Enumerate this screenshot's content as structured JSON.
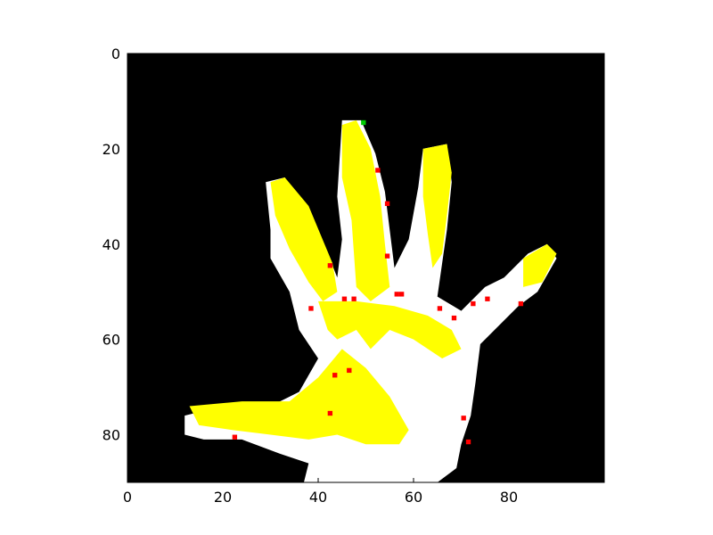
{
  "chart_data": {
    "type": "heatmap",
    "title": "",
    "xlabel": "",
    "ylabel": "",
    "xlim": [
      0,
      100
    ],
    "ylim": [
      90,
      0
    ],
    "xticks": [
      "0",
      "20",
      "40",
      "60",
      "80"
    ],
    "yticks": [
      "0",
      "20",
      "40",
      "60",
      "80"
    ],
    "grid": false,
    "legend": "none",
    "colors": {
      "background": "#000000",
      "hand": "#ffffff",
      "highlight": "#ffff00",
      "edge_points": "#ff0000",
      "top_point": "#00cc00"
    },
    "image_description_regions": {
      "hand_outline": [
        [
          12,
          76
        ],
        [
          20,
          74
        ],
        [
          30,
          74
        ],
        [
          36,
          71
        ],
        [
          40,
          64
        ],
        [
          36,
          58
        ],
        [
          34,
          50
        ],
        [
          30,
          43
        ],
        [
          30,
          37
        ],
        [
          29,
          27
        ],
        [
          33,
          26
        ],
        [
          36,
          31
        ],
        [
          39,
          38
        ],
        [
          42,
          42
        ],
        [
          44,
          47
        ],
        [
          45,
          39
        ],
        [
          44,
          30
        ],
        [
          45,
          14
        ],
        [
          49,
          14
        ],
        [
          52,
          21
        ],
        [
          54,
          29
        ],
        [
          55,
          37
        ],
        [
          56,
          45
        ],
        [
          59,
          39
        ],
        [
          61,
          28
        ],
        [
          62,
          20
        ],
        [
          67,
          19
        ],
        [
          68,
          27
        ],
        [
          67,
          37
        ],
        [
          65,
          51
        ],
        [
          70,
          54
        ],
        [
          75,
          49
        ],
        [
          79,
          47
        ],
        [
          84,
          42
        ],
        [
          88,
          40
        ],
        [
          90,
          43
        ],
        [
          86,
          50
        ],
        [
          82,
          53
        ],
        [
          78,
          57
        ],
        [
          74,
          61
        ],
        [
          73,
          69
        ],
        [
          72,
          76
        ],
        [
          70,
          82
        ],
        [
          69,
          87
        ],
        [
          65,
          90
        ],
        [
          37,
          90
        ],
        [
          38,
          86
        ],
        [
          32,
          84
        ],
        [
          24,
          81
        ],
        [
          16,
          81
        ],
        [
          12,
          80
        ]
      ],
      "yellow_regions": [
        [
          [
            30,
            27
          ],
          [
            33,
            26
          ],
          [
            38,
            32
          ],
          [
            43,
            44
          ],
          [
            44,
            50
          ],
          [
            41,
            52
          ],
          [
            38,
            48
          ],
          [
            34,
            41
          ],
          [
            31,
            34
          ]
        ],
        [
          [
            45,
            15
          ],
          [
            48,
            14
          ],
          [
            51,
            20
          ],
          [
            53,
            30
          ],
          [
            54,
            40
          ],
          [
            55,
            49
          ],
          [
            51,
            52
          ],
          [
            48,
            49
          ],
          [
            47,
            35
          ],
          [
            45,
            26
          ]
        ],
        [
          [
            62,
            20
          ],
          [
            67,
            19
          ],
          [
            68,
            25
          ],
          [
            67,
            34
          ],
          [
            66,
            42
          ],
          [
            64,
            45
          ],
          [
            63,
            38
          ],
          [
            62,
            30
          ]
        ],
        [
          [
            83,
            43
          ],
          [
            88,
            40
          ],
          [
            90,
            42
          ],
          [
            87,
            48
          ],
          [
            83,
            49
          ]
        ],
        [
          [
            40,
            52
          ],
          [
            48,
            52
          ],
          [
            56,
            53
          ],
          [
            63,
            55
          ],
          [
            68,
            58
          ],
          [
            70,
            62
          ],
          [
            66,
            64
          ],
          [
            60,
            60
          ],
          [
            55,
            58
          ],
          [
            51,
            62
          ],
          [
            48,
            58
          ],
          [
            44,
            60
          ],
          [
            42,
            58
          ]
        ],
        [
          [
            13,
            74
          ],
          [
            24,
            73
          ],
          [
            34,
            73
          ],
          [
            40,
            68
          ],
          [
            45,
            62
          ],
          [
            50,
            66
          ],
          [
            55,
            72
          ],
          [
            59,
            79
          ],
          [
            57,
            82
          ],
          [
            50,
            82
          ],
          [
            44,
            80
          ],
          [
            38,
            81
          ],
          [
            30,
            80
          ],
          [
            22,
            79
          ],
          [
            15,
            78
          ]
        ]
      ],
      "red_points": [
        [
          52,
          24
        ],
        [
          54,
          31
        ],
        [
          54,
          42
        ],
        [
          42,
          44
        ],
        [
          38,
          53
        ],
        [
          45,
          51
        ],
        [
          47,
          51
        ],
        [
          56,
          50
        ],
        [
          57,
          50
        ],
        [
          65,
          53
        ],
        [
          68,
          55
        ],
        [
          72,
          52
        ],
        [
          75,
          51
        ],
        [
          82,
          52
        ],
        [
          46,
          66
        ],
        [
          43,
          67
        ],
        [
          42,
          75
        ],
        [
          22,
          80
        ],
        [
          70,
          76
        ],
        [
          71,
          81
        ]
      ],
      "green_points": [
        [
          49,
          14
        ]
      ]
    }
  }
}
